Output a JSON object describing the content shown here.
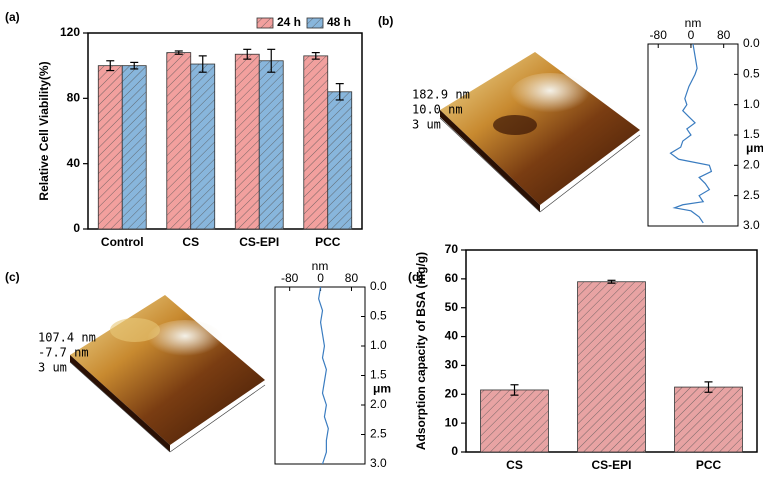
{
  "chart_data": [
    {
      "type": "bar",
      "panel_label": "(a)",
      "y_label": "Relative Cell Viability(%)",
      "categories": [
        "Control",
        "CS",
        "CS-EPI",
        "PCC"
      ],
      "series": [
        {
          "name": "24 h",
          "color": "#f2a09e",
          "values": [
            100,
            108,
            107,
            106
          ],
          "errors": [
            3,
            1,
            3,
            2
          ]
        },
        {
          "name": "48 h",
          "color": "#88b6dc",
          "values": [
            100,
            101,
            103,
            84
          ],
          "errors": [
            2,
            5,
            7,
            5
          ]
        }
      ],
      "ylim": [
        0,
        120
      ],
      "yticks": [
        0,
        40,
        80,
        120
      ],
      "legend": "top-right"
    },
    {
      "type": "profile",
      "panel_label": "(b)",
      "image_labels": [
        "182.9 nm",
        "10.0 nm",
        "3 um"
      ],
      "y_label": "nm",
      "x_label": "μm",
      "x": [
        0,
        0.2,
        0.4,
        0.5,
        0.7,
        0.9,
        1.0,
        1.1,
        1.2,
        1.3,
        1.4,
        1.5,
        1.6,
        1.7,
        1.8,
        1.9,
        2.0,
        2.1,
        2.2,
        2.3,
        2.4,
        2.5,
        2.6,
        2.65,
        2.7,
        2.75,
        2.85,
        2.95
      ],
      "values": [
        5,
        10,
        15,
        10,
        -5,
        -15,
        -10,
        -20,
        -5,
        10,
        -10,
        0,
        -20,
        -25,
        -50,
        -30,
        45,
        50,
        20,
        35,
        45,
        20,
        30,
        -20,
        -40,
        0,
        20,
        30
      ],
      "color": "#3a7cc0",
      "ylim": [
        -105,
        115
      ],
      "yticks": [
        -80,
        0,
        80
      ],
      "xlim": [
        0,
        3
      ],
      "xticks": [
        {
          "value": 0,
          "label": "0.0"
        },
        0.5,
        {
          "value": 1,
          "label": "1.0"
        },
        1.5,
        {
          "value": 2,
          "label": "2.0"
        },
        2.5,
        {
          "value": 3,
          "label": "3.0"
        }
      ]
    },
    {
      "type": "profile",
      "panel_label": "(c)",
      "image_labels": [
        "107.4 nm",
        "-7.7 nm",
        "3 um"
      ],
      "y_label": "nm",
      "x_label": "μm",
      "x": [
        0,
        0.2,
        0.4,
        0.6,
        0.8,
        1.0,
        1.2,
        1.4,
        1.6,
        1.8,
        2.0,
        2.2,
        2.4,
        2.6,
        2.8,
        3.0
      ],
      "values": [
        0,
        -5,
        5,
        0,
        5,
        10,
        5,
        15,
        10,
        5,
        15,
        10,
        20,
        15,
        15,
        5
      ],
      "color": "#3a7cc0",
      "ylim": [
        -118,
        115
      ],
      "yticks": [
        -80,
        0,
        80
      ],
      "xlim": [
        0,
        3
      ],
      "xticks": [
        {
          "value": 0,
          "label": "0.0"
        },
        0.5,
        {
          "value": 1,
          "label": "1.0"
        },
        1.5,
        {
          "value": 2,
          "label": "2.0"
        },
        2.5,
        {
          "value": 3,
          "label": "3.0"
        }
      ]
    },
    {
      "type": "bar",
      "panel_label": "(d)",
      "y_label": "Adsorption capacity of BSA (mg/g)",
      "categories": [
        "CS",
        "CS-EPI",
        "PCC"
      ],
      "series": [
        {
          "color": "#e8a3a3",
          "values": [
            21.5,
            59,
            22.5
          ],
          "errors": [
            1.8,
            0.5,
            1.8
          ]
        }
      ],
      "ylim": [
        0,
        70
      ],
      "yticks": [
        0,
        10,
        20,
        30,
        40,
        50,
        60,
        70
      ]
    }
  ]
}
